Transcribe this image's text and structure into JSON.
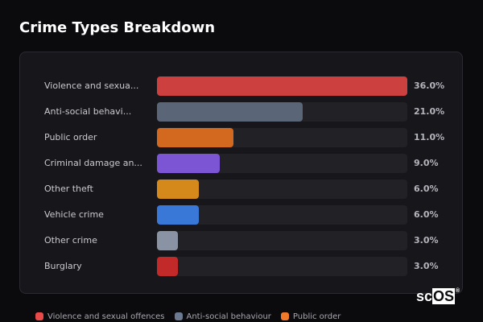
{
  "title": "Crime Types Breakdown",
  "chart_data": {
    "type": "bar",
    "orientation": "horizontal",
    "title": "Crime Types Breakdown",
    "xlabel": "",
    "ylabel": "",
    "xlim": [
      0,
      36
    ],
    "categories": [
      "Violence and sexual offences",
      "Anti-social behaviour",
      "Public order",
      "Criminal damage and arson",
      "Other theft",
      "Vehicle crime",
      "Other crime",
      "Burglary"
    ],
    "display_labels": [
      "Violence and sexua...",
      "Anti-social behavi...",
      "Public order",
      "Criminal damage an...",
      "Other theft",
      "Vehicle crime",
      "Other crime",
      "Burglary"
    ],
    "values": [
      36.0,
      21.0,
      11.0,
      9.0,
      6.0,
      6.0,
      3.0,
      3.0
    ],
    "value_labels": [
      "36.0%",
      "21.0%",
      "11.0%",
      "9.0%",
      "6.0%",
      "6.0%",
      "3.0%",
      "3.0%"
    ],
    "colors": [
      "#cc4040",
      "#5a6677",
      "#d2691e",
      "#7b55d4",
      "#d4891a",
      "#3a78d8",
      "#8a93a3",
      "#c22a2a"
    ],
    "legend": [
      {
        "label": "Violence and sexual offences",
        "color": "#e84a4a"
      },
      {
        "label": "Anti-social behaviour",
        "color": "#6b7a90"
      },
      {
        "label": "Public order",
        "color": "#f07a2a"
      }
    ],
    "legend_position": "bottom",
    "grid": false
  },
  "logo": {
    "sc": "sc",
    "os": "OS",
    "reg": "®"
  }
}
